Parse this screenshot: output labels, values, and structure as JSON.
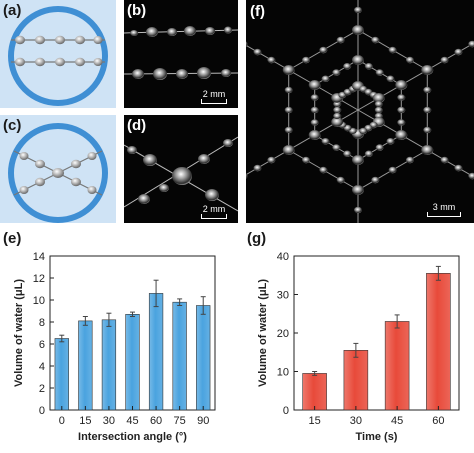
{
  "panels": {
    "a": {
      "label": "(a)"
    },
    "b": {
      "label": "(b)",
      "scale": "2 mm"
    },
    "c": {
      "label": "(c)"
    },
    "d": {
      "label": "(d)",
      "scale": "2 mm"
    },
    "f": {
      "label": "(f)",
      "scale": "3 mm"
    },
    "e": {
      "label": "(e)"
    },
    "g": {
      "label": "(g)"
    }
  },
  "colors": {
    "blue_bar": "#4aa3df",
    "red_bar": "#e84a3a",
    "ring": "#3f8fd4",
    "schematic_bg": "#cfe3f5",
    "photo_bg": "#050505"
  },
  "chart_data": [
    {
      "id": "e",
      "type": "bar",
      "categories": [
        "0",
        "15",
        "30",
        "45",
        "60",
        "75",
        "90"
      ],
      "values": [
        6.5,
        8.1,
        8.2,
        8.7,
        10.6,
        9.8,
        9.5
      ],
      "errors": [
        0.3,
        0.4,
        0.6,
        0.2,
        1.2,
        0.3,
        0.8
      ],
      "xlabel": "Intersection angle (°)",
      "ylabel": "Volume of water (μL)",
      "ylim": [
        0,
        14
      ],
      "yticks": [
        "0",
        "2",
        "4",
        "6",
        "8",
        "10",
        "12",
        "14"
      ],
      "grid": false
    },
    {
      "id": "g",
      "type": "bar",
      "categories": [
        "15",
        "30",
        "45",
        "60"
      ],
      "values": [
        9.5,
        15.5,
        23.0,
        35.5
      ],
      "errors": [
        0.5,
        1.8,
        1.7,
        1.8
      ],
      "xlabel": "Time (s)",
      "ylabel": "Volume of water (μL)",
      "ylim": [
        0,
        40
      ],
      "yticks": [
        "0",
        "10",
        "20",
        "30",
        "40"
      ],
      "grid": false
    }
  ]
}
